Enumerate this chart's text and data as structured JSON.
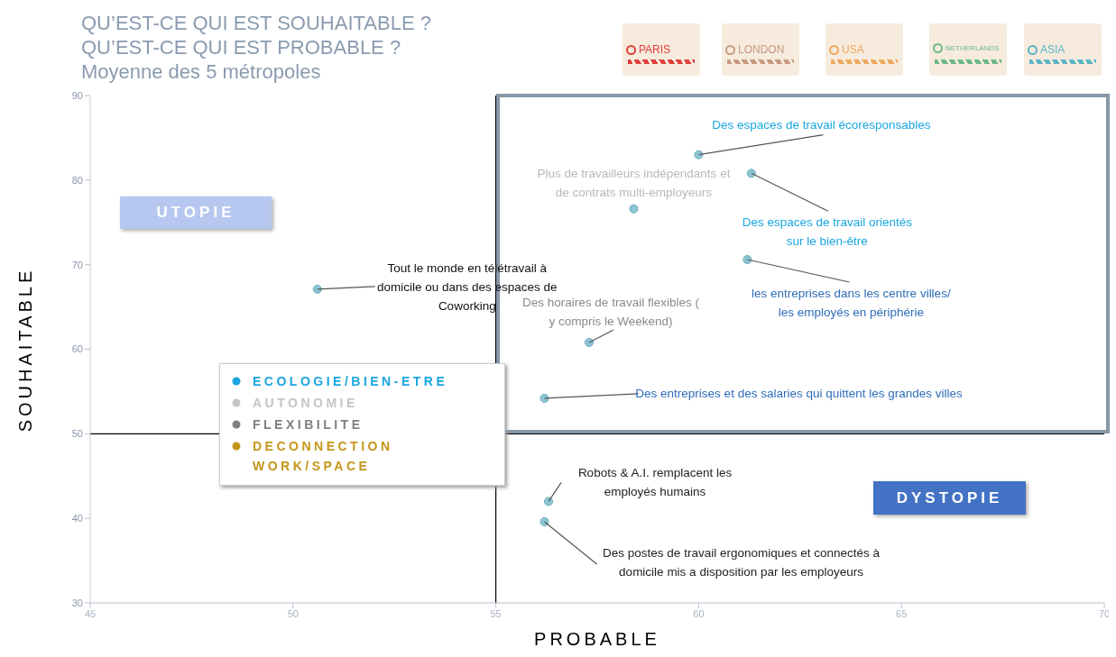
{
  "chart_data": {
    "type": "scatter",
    "title": "QU’EST-CE QUI EST SOUHAITABLE ? QU’EST-CE QUI EST PROBABLE ?",
    "subtitle": "Moyenne des 5 métropoles",
    "xlabel": "PROBABLE",
    "ylabel": "SOUHAITABLE",
    "xlim": [
      45,
      70
    ],
    "xticks": [
      45,
      50,
      55,
      60,
      65,
      70
    ],
    "ylim": [
      30,
      90
    ],
    "yticks": [
      30,
      40,
      50,
      60,
      70,
      80,
      90
    ],
    "marker": "circle",
    "legend": "left",
    "series": [
      {
        "color": "#8cc6d4",
        "x": [
          60.0,
          61.3,
          58.4,
          61.2,
          50.6,
          57.3,
          56.2,
          56.3,
          56.2
        ],
        "values": [
          83.0,
          80.8,
          76.6,
          70.6,
          67.1,
          60.8,
          54.2,
          42.0,
          39.6
        ]
      },
      {
        "name": "ECOLOGIE/BIEN-ETRE",
        "color": "#1aa6e0"
      },
      {
        "name": "AUTONOMIE",
        "color": "#c4c4c4"
      },
      {
        "name": "FLEXIBILITE",
        "color": "#808080"
      },
      {
        "name": "DECONNECTION WORK/SPACE",
        "color": "#c4961a"
      }
    ],
    "ref_lines": [
      {
        "axis": "x",
        "value": 55,
        "color": "#000000"
      },
      {
        "axis": "y",
        "value": 50,
        "color": "#000000"
      }
    ],
    "annotations": [
      "UTOPIE",
      "DYSTOPIE",
      "PARIS",
      "LONDON",
      "USA",
      "NETHERLANDS",
      "ASIA",
      {
        "text": "Des espaces de travail écoresponsables",
        "x": 60.0,
        "y": 83.0
      },
      {
        "text": "Des espaces de travail orientés sur le bien-être",
        "x": 61.3,
        "y": 80.8
      },
      {
        "text": "Plus de travailleurs indépendants et de contrats multi-employeurs",
        "x": 58.4,
        "y": 76.6
      },
      {
        "text": "les entreprises dans les centre villes/ les employés en périphérie",
        "x": 61.2,
        "y": 70.6
      },
      {
        "text": "Tout le monde en télétravail à domicile ou dans des espaces de Coworking",
        "x": 50.6,
        "y": 67.1
      },
      {
        "text": "Des horaires de travail flexibles ( y compris le Weekend)",
        "x": 57.3,
        "y": 60.8
      },
      {
        "text": "Des entreprises et des salaries qui quittent les grandes villes",
        "x": 56.2,
        "y": 54.2
      },
      {
        "text": "Robots & A.I. remplacent les employés humains",
        "x": 56.3,
        "y": 42.0
      },
      {
        "text": "Des postes de travail ergonomiques et connectés à domicile mis a disposition par les employeurs",
        "x": 56.2,
        "y": 39.6
      }
    ]
  }
}
